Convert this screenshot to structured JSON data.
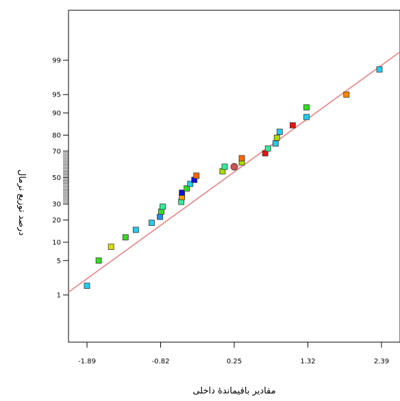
{
  "chart_data": {
    "type": "scatter",
    "title": "",
    "xlabel": "مقادیر باقیماندهٔ داخلی",
    "ylabel": "درصد توزیع نرمال",
    "x_ticks": [
      "-1.89",
      "-0.82",
      "0.25",
      "1.32",
      "2.39"
    ],
    "x_tick_values": [
      -1.89,
      -0.82,
      0.25,
      1.32,
      2.39
    ],
    "y_ticks": [
      "1",
      "5",
      "10",
      "20",
      "30",
      "50",
      "70",
      "80",
      "90",
      "95",
      "99"
    ],
    "y_tick_values": [
      1,
      5,
      10,
      20,
      30,
      50,
      70,
      80,
      90,
      95,
      99
    ],
    "y_scale": "normal-probability",
    "xlim": [
      -1.9,
      2.4
    ],
    "grid": false,
    "reference_line": {
      "color": "#f08080",
      "points": [
        {
          "x": -1.9,
          "y": 2.2
        },
        {
          "x": 2.36,
          "y": 98.6
        }
      ]
    },
    "points": [
      {
        "x": -1.89,
        "y": 1.6,
        "color": "#22ccee"
      },
      {
        "x": -1.72,
        "y": 5.0,
        "color": "#33dd22"
      },
      {
        "x": -1.54,
        "y": 8.5,
        "color": "#dddd00"
      },
      {
        "x": -1.33,
        "y": 11.8,
        "color": "#33dd22"
      },
      {
        "x": -1.18,
        "y": 15.0,
        "color": "#22ccee"
      },
      {
        "x": -0.95,
        "y": 18.5,
        "color": "#22ccee"
      },
      {
        "x": -0.83,
        "y": 21.8,
        "color": "#1e90ff"
      },
      {
        "x": -0.81,
        "y": 25.0,
        "color": "#33dd22"
      },
      {
        "x": -0.79,
        "y": 28.2,
        "color": "#33ee99"
      },
      {
        "x": -0.52,
        "y": 31.5,
        "color": "#33ee99"
      },
      {
        "x": -0.51,
        "y": 35.0,
        "color": "#ff9900"
      },
      {
        "x": -0.51,
        "y": 38.2,
        "color": "#1010dd"
      },
      {
        "x": -0.44,
        "y": 41.5,
        "color": "#33dd22"
      },
      {
        "x": -0.39,
        "y": 45.0,
        "color": "#22ccee"
      },
      {
        "x": -0.33,
        "y": 48.2,
        "color": "#1010dd"
      },
      {
        "x": -0.3,
        "y": 51.5,
        "color": "#ff6600"
      },
      {
        "x": 0.08,
        "y": 55.0,
        "color": "#aadd00"
      },
      {
        "x": 0.11,
        "y": 58.5,
        "color": "#33ee99"
      },
      {
        "x": 0.25,
        "y": 58.5,
        "color": "#cc5555",
        "shape": "circle"
      },
      {
        "x": 0.36,
        "y": 61.8,
        "color": "#aadd00"
      },
      {
        "x": 0.36,
        "y": 65.0,
        "color": "#ff6600"
      },
      {
        "x": 0.7,
        "y": 68.5,
        "color": "#ee1111"
      },
      {
        "x": 0.74,
        "y": 71.8,
        "color": "#33ee99"
      },
      {
        "x": 0.85,
        "y": 75.0,
        "color": "#22ccee"
      },
      {
        "x": 0.87,
        "y": 78.5,
        "color": "#aadd00"
      },
      {
        "x": 0.91,
        "y": 81.8,
        "color": "#22ccee"
      },
      {
        "x": 1.1,
        "y": 85.0,
        "color": "#ee1111"
      },
      {
        "x": 1.3,
        "y": 88.5,
        "color": "#22ccee"
      },
      {
        "x": 1.3,
        "y": 91.8,
        "color": "#33dd22"
      },
      {
        "x": 1.88,
        "y": 95.0,
        "color": "#ff8800"
      },
      {
        "x": 2.36,
        "y": 98.4,
        "color": "#22ccee"
      }
    ]
  }
}
